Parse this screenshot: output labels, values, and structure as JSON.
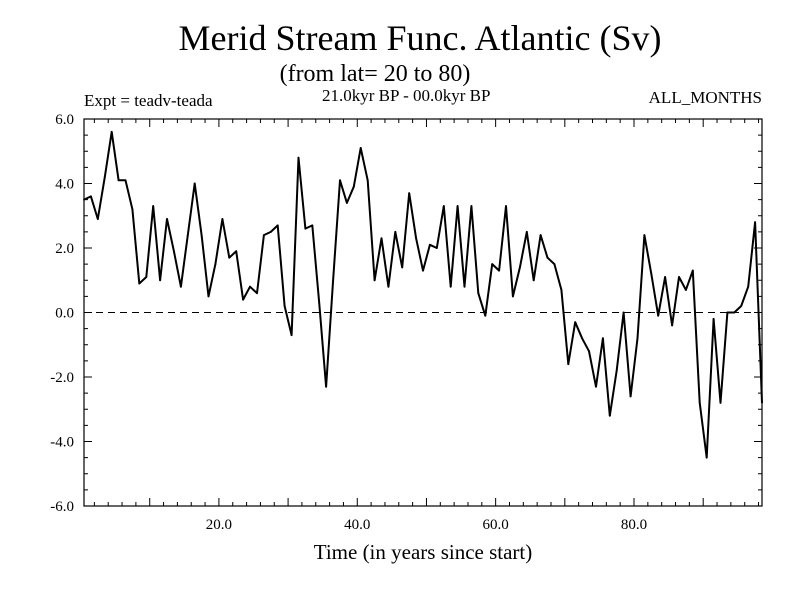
{
  "chart_data": {
    "type": "line",
    "title": "Merid Stream Func. Atlantic (Sv)",
    "subtitle": "(from lat= 20 to 80)",
    "annotations": {
      "experiment": "Expt = teadv-teada",
      "period": "21.0kyr BP - 00.0kyr BP",
      "months": "ALL_MONTHS"
    },
    "xlabel": "Time (in years since start)",
    "ylabel": "",
    "xlim": [
      0.5,
      98.5
    ],
    "ylim": [
      -6.0,
      6.0
    ],
    "xticks": [
      20,
      40,
      60,
      80
    ],
    "xtick_labels": [
      "20.0",
      "40.0",
      "60.0",
      "80.0"
    ],
    "yticks": [
      -6,
      -4,
      -2,
      0,
      2,
      4,
      6
    ],
    "ytick_labels": [
      "-6.0",
      "-4.0",
      "-2.0",
      "0.0",
      "2.0",
      "4.0",
      "6.0"
    ],
    "reference_line": {
      "y": 0.0,
      "style": "dashed"
    },
    "grid": false,
    "series": [
      {
        "name": "Merid Stream Func. Atlantic",
        "x": [
          0.5,
          1.5,
          2.5,
          3.5,
          4.5,
          5.5,
          6.5,
          7.5,
          8.5,
          9.5,
          10.5,
          11.5,
          12.5,
          13.5,
          14.5,
          15.5,
          16.5,
          17.5,
          18.5,
          19.5,
          20.5,
          21.5,
          22.5,
          23.5,
          24.5,
          25.5,
          26.5,
          27.5,
          28.5,
          29.5,
          30.5,
          31.5,
          32.5,
          33.5,
          34.5,
          35.5,
          36.5,
          37.5,
          38.5,
          39.5,
          40.5,
          41.5,
          42.5,
          43.5,
          44.5,
          45.5,
          46.5,
          47.5,
          48.5,
          49.5,
          50.5,
          51.5,
          52.5,
          53.5,
          54.5,
          55.5,
          56.5,
          57.5,
          58.5,
          59.5,
          60.5,
          61.5,
          62.5,
          63.5,
          64.5,
          65.5,
          66.5,
          67.5,
          68.5,
          69.5,
          70.5,
          71.5,
          72.5,
          73.5,
          74.5,
          75.5,
          76.5,
          77.5,
          78.5,
          79.5,
          80.5,
          81.5,
          82.5,
          83.5,
          84.5,
          85.5,
          86.5,
          87.5,
          88.5,
          89.5,
          90.5,
          91.5,
          92.5,
          93.5,
          94.5,
          95.5,
          96.5,
          97.5,
          98.5
        ],
        "values": [
          3.5,
          3.6,
          2.9,
          4.2,
          5.6,
          4.1,
          4.1,
          3.2,
          0.9,
          1.1,
          3.3,
          1.0,
          2.9,
          1.9,
          0.8,
          2.4,
          4.0,
          2.4,
          0.5,
          1.5,
          2.9,
          1.7,
          1.9,
          0.4,
          0.8,
          0.6,
          2.4,
          2.5,
          2.7,
          0.2,
          -0.7,
          4.8,
          2.6,
          2.7,
          0.3,
          -2.3,
          1.0,
          4.1,
          3.4,
          3.9,
          5.1,
          4.1,
          1.0,
          2.3,
          0.8,
          2.5,
          1.4,
          3.7,
          2.3,
          1.3,
          2.1,
          2.0,
          3.3,
          0.8,
          3.3,
          0.8,
          3.3,
          0.6,
          -0.1,
          1.5,
          1.3,
          3.3,
          0.5,
          1.4,
          2.5,
          1.0,
          2.4,
          1.7,
          1.5,
          0.7,
          -1.6,
          -0.3,
          -0.8,
          -1.2,
          -2.3,
          -0.8,
          -3.2,
          -1.8,
          0.0,
          -2.6,
          -0.8,
          2.4,
          1.2,
          -0.1,
          1.1,
          -0.4,
          1.1,
          0.7,
          1.3,
          -2.8,
          -4.5,
          -0.2,
          -2.8,
          0.0,
          0.0,
          0.2,
          0.8,
          2.8,
          -2.8
        ]
      }
    ]
  }
}
